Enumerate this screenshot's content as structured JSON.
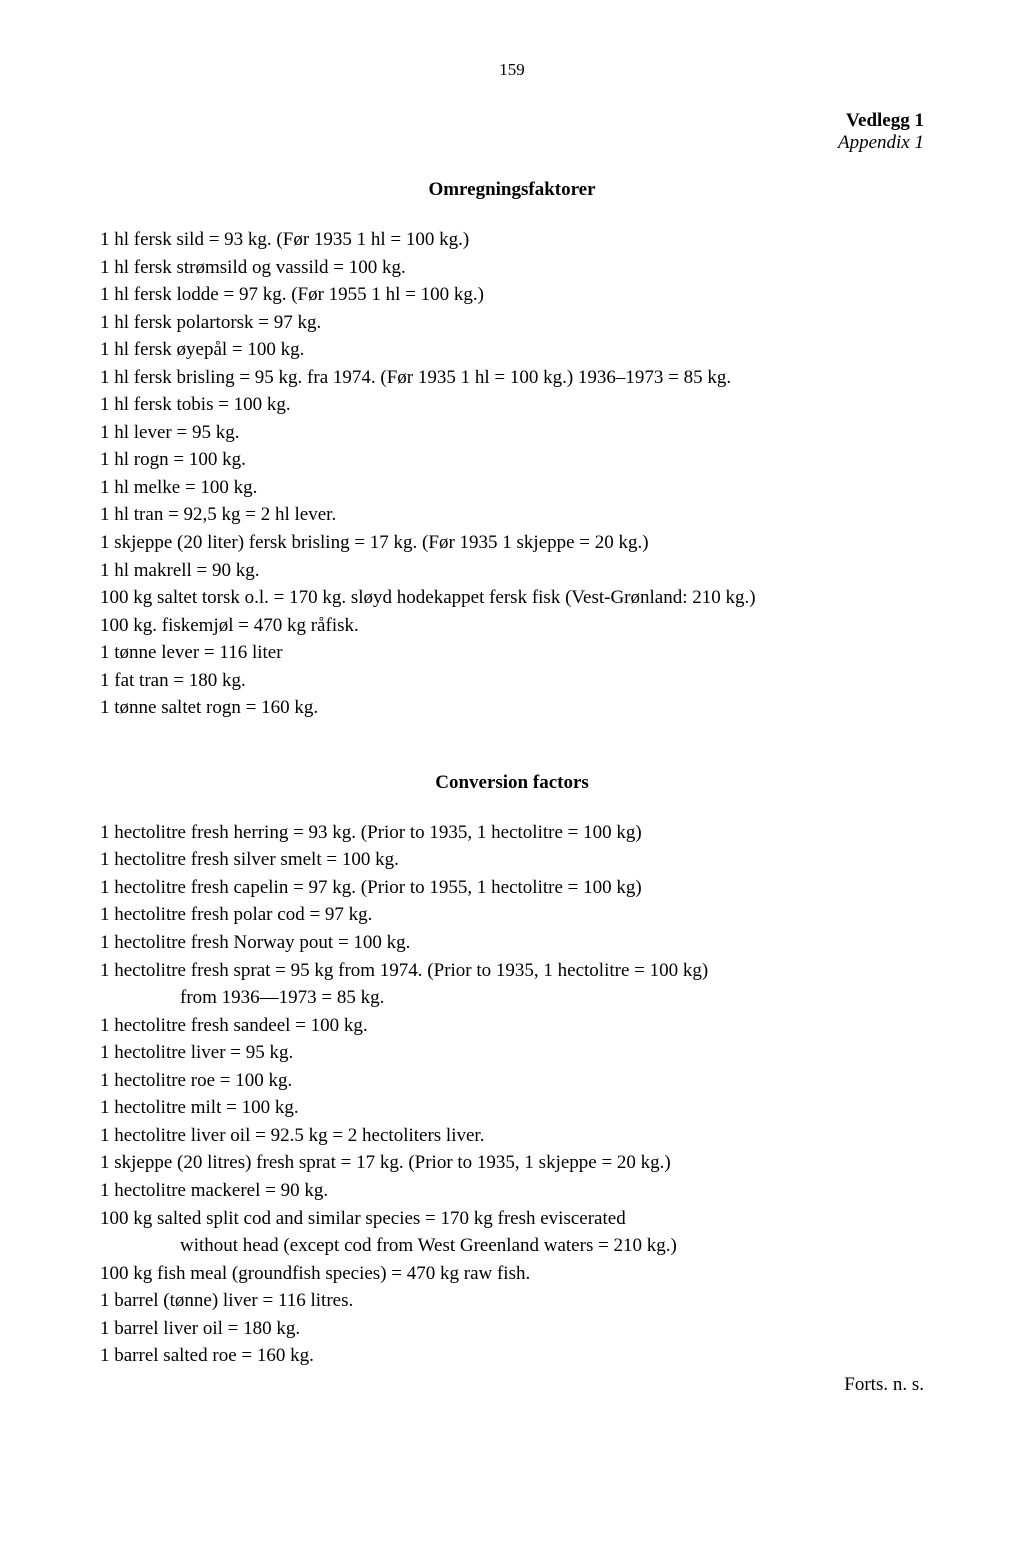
{
  "page_number": "159",
  "header": {
    "title_bold": "Vedlegg 1",
    "title_italic": "Appendix 1"
  },
  "section1": {
    "title": "Omregningsfaktorer",
    "lines": [
      "1 hl fersk sild = 93 kg. (Før 1935 1 hl = 100 kg.)",
      "1 hl fersk strømsild og vassild = 100 kg.",
      "1 hl fersk lodde = 97 kg. (Før 1955 1 hl = 100 kg.)",
      "1 hl fersk polartorsk = 97 kg.",
      "1 hl fersk øyepål = 100 kg.",
      "1 hl fersk brisling = 95 kg. fra 1974. (Før 1935 1 hl = 100 kg.) 1936–1973 = 85 kg.",
      "1 hl fersk tobis = 100 kg.",
      "1 hl lever = 95 kg.",
      "1 hl rogn = 100 kg.",
      "1 hl melke = 100 kg.",
      "1 hl tran = 92,5 kg = 2 hl lever.",
      "1 skjeppe (20 liter) fersk brisling = 17 kg. (Før 1935 1 skjeppe = 20 kg.)",
      "1 hl makrell = 90 kg.",
      "100 kg saltet torsk o.l. = 170 kg. sløyd hodekappet fersk fisk (Vest-Grønland: 210 kg.)",
      "100 kg. fiskemjøl = 470 kg råfisk.",
      "1 tønne lever = 116 liter",
      "1 fat tran = 180 kg.",
      "1 tønne saltet rogn = 160 kg."
    ]
  },
  "section2": {
    "title": "Conversion factors",
    "lines": [
      "1 hectolitre fresh herring = 93 kg. (Prior to 1935, 1 hectolitre = 100 kg)",
      "1 hectolitre fresh silver smelt = 100 kg.",
      "1 hectolitre fresh capelin = 97 kg. (Prior to 1955, 1 hectolitre = 100 kg)",
      "1 hectolitre fresh polar cod = 97 kg.",
      "1 hectolitre fresh Norway pout = 100 kg.",
      "1 hectolitre fresh sprat = 95 kg from 1974. (Prior to 1935, 1 hectolitre = 100 kg)"
    ],
    "indent_line": "from 1936—1973 = 85 kg.",
    "lines2": [
      "1 hectolitre fresh sandeel = 100 kg.",
      "1 hectolitre liver = 95 kg.",
      "1 hectolitre roe = 100 kg.",
      "1 hectolitre milt = 100 kg.",
      "1 hectolitre liver oil = 92.5 kg = 2 hectoliters liver.",
      "1 skjeppe (20 litres) fresh sprat = 17 kg. (Prior to 1935, 1 skjeppe = 20 kg.)",
      "1 hectolitre mackerel = 90 kg.",
      "100 kg salted split cod and similar species = 170 kg fresh eviscerated"
    ],
    "indent_line2": "without head (except cod from West Greenland waters = 210 kg.)",
    "lines3": [
      "100 kg fish meal (groundfish species) = 470 kg raw fish.",
      "1 barrel (tønne) liver = 116 litres.",
      "1 barrel liver oil = 180 kg.",
      "1 barrel salted roe = 160 kg."
    ]
  },
  "footer": "Forts. n. s."
}
